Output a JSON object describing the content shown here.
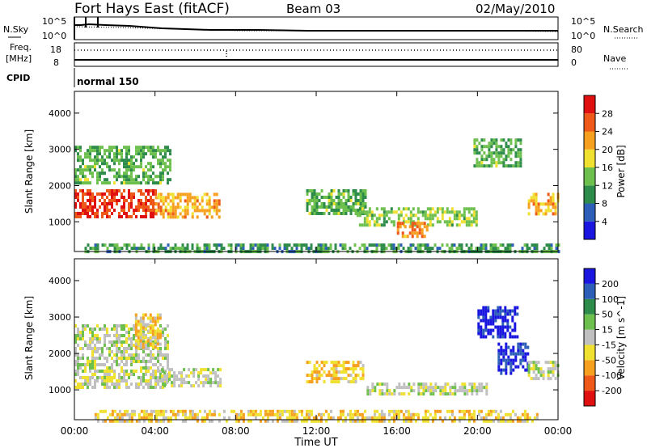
{
  "header": {
    "radar": "Fort Hays East (fitACF)",
    "beam": "Beam 03",
    "date": "02/May/2010"
  },
  "noise_panel": {
    "left_label": "N.Sky",
    "right_label": "N.Search",
    "left_ticks": [
      "10^5",
      "10^0"
    ],
    "right_ticks": [
      "10^5",
      "10^0"
    ]
  },
  "freq_panel": {
    "left_label_1": "Freq.",
    "left_label_2": "[MHz]",
    "right_label": "Nave",
    "left_ticks": [
      "18",
      "8"
    ],
    "right_ticks": [
      "80",
      "0"
    ]
  },
  "cpid": {
    "label": "CPID",
    "mode": "normal 150"
  },
  "chart_data": [
    {
      "type": "heatmap",
      "title": "Power",
      "ylabel": "Slant Range [km]",
      "xlabel": "Time UT",
      "x_ticks": [
        "00:00",
        "04:00",
        "08:00",
        "12:00",
        "16:00",
        "20:00",
        "00:00"
      ],
      "y_ticks": [
        "1000",
        "2000",
        "3000",
        "4000"
      ],
      "xlim_hours": [
        0,
        24
      ],
      "ylim_km": [
        180,
        4600
      ],
      "colorbar": {
        "label": "Power [dB]",
        "ticks": [
          "4",
          "8",
          "12",
          "16",
          "20",
          "24",
          "28"
        ],
        "range": [
          0,
          30
        ],
        "colors": [
          "#1a16e0",
          "#2e5fb8",
          "#2e8c4a",
          "#6ec04e",
          "#f0e030",
          "#f7a020",
          "#ee5818",
          "#e11010"
        ]
      },
      "regions": [
        {
          "t0": 0.0,
          "t1": 4.0,
          "r0": 1100,
          "r1": 1900,
          "level": 26
        },
        {
          "t0": 0.0,
          "t1": 4.7,
          "r0": 2100,
          "r1": 3100,
          "level": 12
        },
        {
          "t0": 4.0,
          "t1": 7.2,
          "r0": 1100,
          "r1": 1800,
          "level": 20
        },
        {
          "t0": 0.5,
          "t1": 24.0,
          "r0": 180,
          "r1": 400,
          "level": 10
        },
        {
          "t0": 11.5,
          "t1": 14.5,
          "r0": 1200,
          "r1": 1900,
          "level": 12
        },
        {
          "t0": 14.0,
          "t1": 20.0,
          "r0": 900,
          "r1": 1400,
          "level": 14
        },
        {
          "t0": 16.0,
          "t1": 17.5,
          "r0": 600,
          "r1": 1000,
          "level": 22
        },
        {
          "t0": 19.8,
          "t1": 22.2,
          "r0": 2500,
          "r1": 3300,
          "level": 12
        },
        {
          "t0": 22.5,
          "t1": 24.0,
          "r0": 1200,
          "r1": 1800,
          "level": 20
        }
      ]
    },
    {
      "type": "heatmap",
      "title": "Velocity",
      "ylabel": "Slant Range [km]",
      "xlabel": "Time UT",
      "x_ticks": [
        "00:00",
        "04:00",
        "08:00",
        "12:00",
        "16:00",
        "20:00",
        "00:00"
      ],
      "y_ticks": [
        "1000",
        "2000",
        "3000",
        "4000"
      ],
      "xlim_hours": [
        0,
        24
      ],
      "ylim_km": [
        180,
        4600
      ],
      "colorbar": {
        "label": "Velocity [m s^-1]",
        "ticks": [
          "200",
          "100",
          "50",
          "15",
          "-15",
          "-50",
          "-100",
          "-200"
        ],
        "range": [
          -250,
          250
        ],
        "colors": [
          "#e11010",
          "#ee5818",
          "#f7a020",
          "#f0e030",
          "#c0c0c0",
          "#6ec04e",
          "#2e8c4a",
          "#2e5fb8",
          "#1a16e0"
        ]
      },
      "regions": [
        {
          "t0": 0.0,
          "t1": 4.6,
          "r0": 1100,
          "r1": 2800,
          "level": 0
        },
        {
          "t0": 3.0,
          "t1": 4.3,
          "r0": 2200,
          "r1": 3100,
          "level": -60
        },
        {
          "t0": 4.3,
          "t1": 7.2,
          "r0": 1100,
          "r1": 1600,
          "level": 10
        },
        {
          "t0": 1.0,
          "t1": 23.0,
          "r0": 180,
          "r1": 450,
          "level": -60
        },
        {
          "t0": 11.5,
          "t1": 14.3,
          "r0": 1200,
          "r1": 1800,
          "level": -70
        },
        {
          "t0": 14.5,
          "t1": 20.5,
          "r0": 900,
          "r1": 1200,
          "level": 0
        },
        {
          "t0": 20.0,
          "t1": 22.0,
          "r0": 2500,
          "r1": 3300,
          "level": 220
        },
        {
          "t0": 21.0,
          "t1": 22.5,
          "r0": 1500,
          "r1": 2300,
          "level": 200
        },
        {
          "t0": 22.5,
          "t1": 24.0,
          "r0": 1300,
          "r1": 1800,
          "level": 0
        }
      ]
    }
  ]
}
